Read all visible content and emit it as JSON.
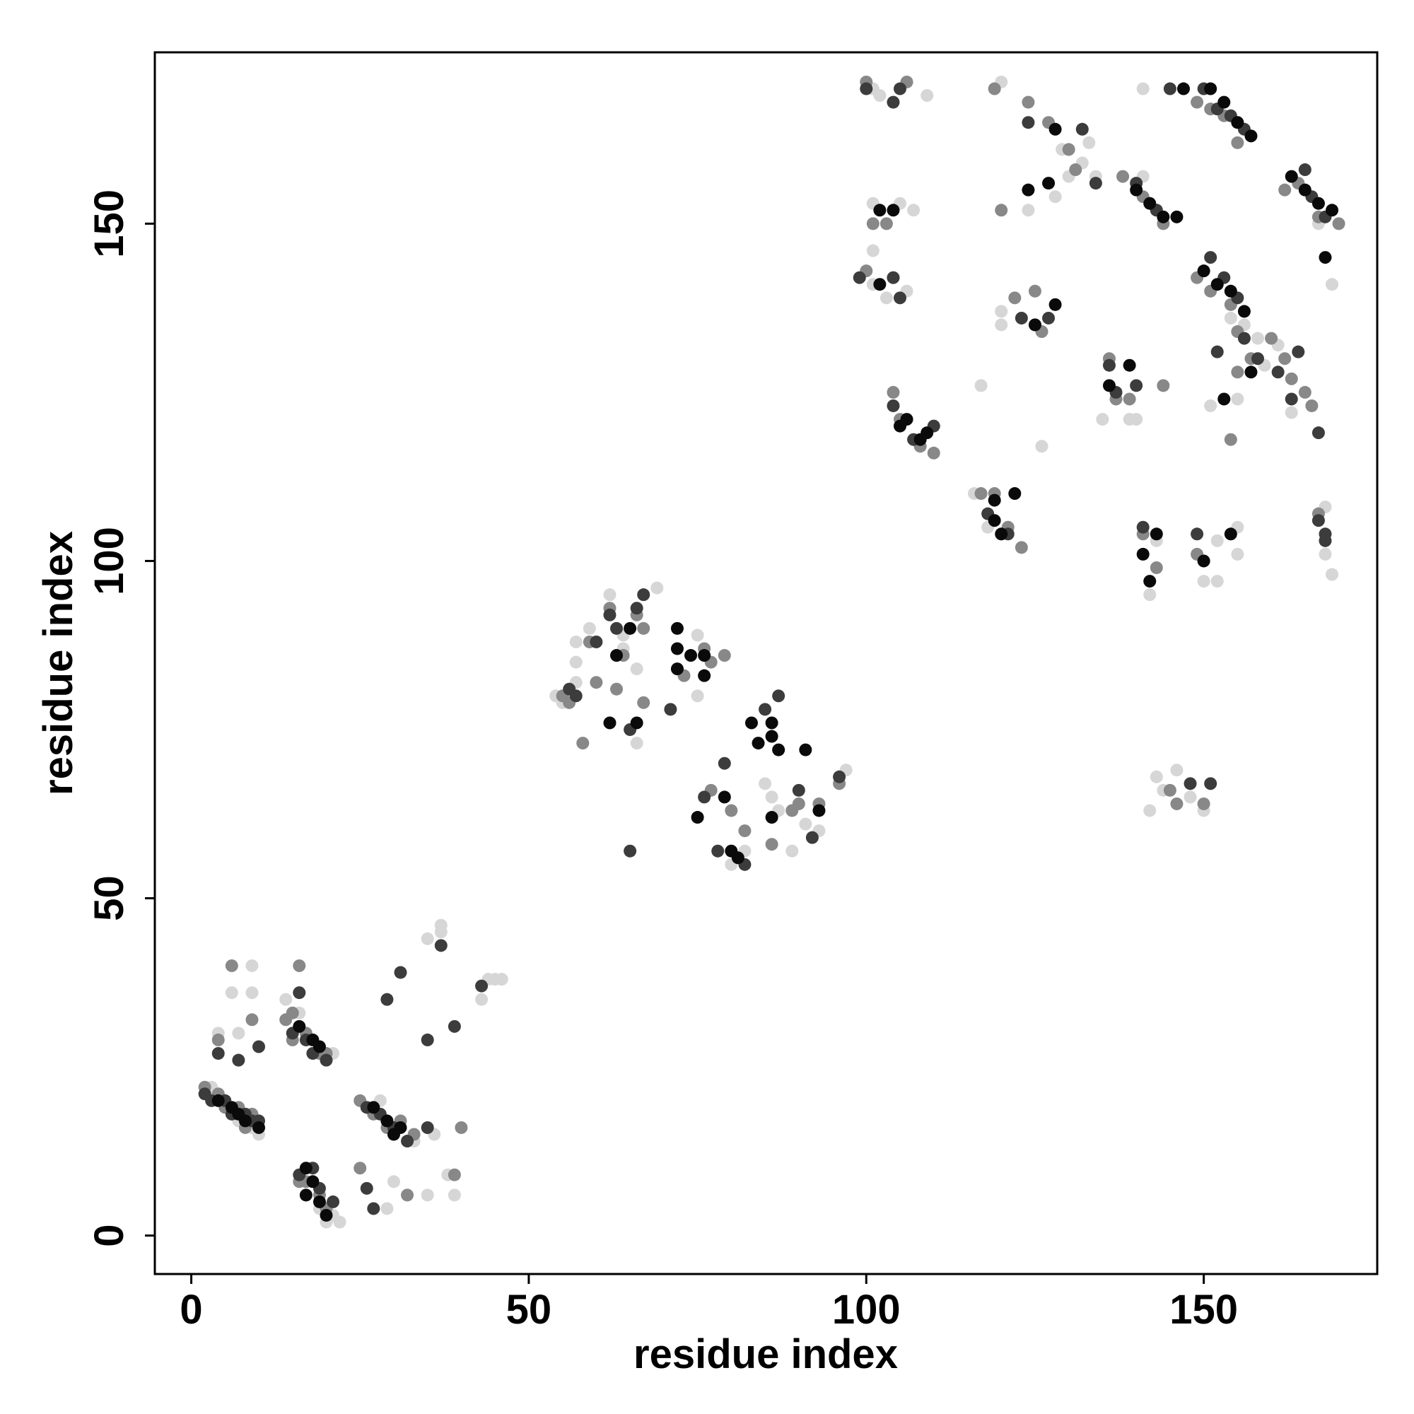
{
  "chart_data": {
    "type": "scatter",
    "x_label": "residue index",
    "y_label": "residue index",
    "xlim": [
      -5.4,
      175.7
    ],
    "ylim": [
      -5.7,
      175.4
    ],
    "xticks": [
      0,
      50,
      100,
      150
    ],
    "yticks": [
      0,
      50,
      100,
      150
    ],
    "grid": false,
    "series": [
      {
        "color": "#d6d6d6",
        "x": [
          3,
          4,
          7,
          8,
          9,
          10,
          14,
          16,
          19,
          21,
          19,
          20,
          22,
          21,
          28,
          30,
          33,
          4,
          6,
          7,
          9,
          9,
          29,
          30,
          35,
          36,
          35,
          37,
          37,
          39,
          38,
          43,
          44,
          45,
          46,
          54,
          55,
          57,
          57,
          57,
          59,
          62,
          64,
          66,
          69,
          64,
          66,
          75,
          75,
          80,
          82,
          86,
          85,
          87,
          89,
          91,
          93,
          97,
          101,
          101,
          101,
          101,
          102,
          105,
          107,
          109,
          103,
          106,
          116,
          118,
          117,
          120,
          120,
          120,
          124,
          126,
          128,
          130,
          129,
          132,
          133,
          134,
          135,
          139,
          140,
          141,
          141,
          142,
          143,
          143,
          144,
          146,
          142,
          148,
          150,
          150,
          152,
          152,
          155,
          155,
          151,
          154,
          156,
          158,
          161,
          159,
          163,
          168,
          168,
          169,
          169,
          167,
          155
        ],
        "values": [
          22,
          21,
          17,
          18,
          16,
          15,
          35,
          33,
          28,
          27,
          4,
          2,
          2,
          3,
          20,
          15,
          14,
          30,
          36,
          30,
          36,
          40,
          4,
          8,
          44,
          15,
          6,
          46,
          45,
          6,
          9,
          35,
          38,
          38,
          38,
          80,
          79,
          82,
          85,
          88,
          90,
          95,
          87,
          84,
          96,
          89,
          73,
          80,
          89,
          55,
          57,
          65,
          67,
          63,
          57,
          61,
          60,
          69,
          141,
          146,
          153,
          170,
          169,
          153,
          152,
          169,
          139,
          140,
          110,
          105,
          126,
          135,
          137,
          171,
          152,
          117,
          154,
          157,
          161,
          159,
          162,
          157,
          121,
          121,
          121,
          170,
          157,
          95,
          103,
          68,
          66,
          69,
          63,
          65,
          63,
          97,
          97,
          103,
          105,
          101,
          123,
          136,
          135,
          133,
          132,
          129,
          122,
          108,
          101,
          98,
          141,
          150,
          124
        ]
      },
      {
        "color": "#888888",
        "x": [
          2,
          4,
          5,
          7,
          8,
          9,
          14,
          15,
          17,
          19,
          20,
          16,
          17,
          19,
          20,
          25,
          27,
          29,
          31,
          33,
          4,
          6,
          9,
          15,
          16,
          25,
          32,
          39,
          40,
          55,
          56,
          58,
          59,
          62,
          64,
          66,
          67,
          60,
          63,
          67,
          73,
          76,
          77,
          79,
          77,
          82,
          80,
          86,
          89,
          90,
          93,
          96,
          100,
          101,
          103,
          104,
          100,
          106,
          104,
          105,
          108,
          110,
          117,
          119,
          121,
          123,
          119,
          120,
          124,
          127,
          130,
          131,
          122,
          125,
          125,
          126,
          136,
          139,
          137,
          144,
          138,
          141,
          143,
          144,
          149,
          151,
          153,
          155,
          149,
          151,
          154,
          155,
          157,
          160,
          162,
          163,
          165,
          167,
          166,
          141,
          143,
          149,
          150,
          145,
          150,
          146,
          162,
          164,
          167,
          170,
          155,
          154
        ],
        "values": [
          22,
          21,
          19,
          19,
          16,
          18,
          32,
          29,
          30,
          27,
          27,
          8,
          8,
          6,
          4,
          20,
          18,
          16,
          17,
          15,
          29,
          40,
          32,
          33,
          40,
          10,
          6,
          9,
          16,
          80,
          79,
          73,
          88,
          93,
          86,
          92,
          90,
          82,
          81,
          79,
          83,
          87,
          85,
          86,
          66,
          60,
          63,
          58,
          63,
          64,
          64,
          67,
          143,
          150,
          150,
          142,
          171,
          171,
          125,
          121,
          117,
          116,
          110,
          110,
          105,
          102,
          170,
          152,
          168,
          165,
          161,
          158,
          139,
          135,
          140,
          134,
          130,
          124,
          124,
          126,
          157,
          154,
          152,
          150,
          168,
          167,
          166,
          162,
          142,
          140,
          138,
          134,
          130,
          133,
          130,
          127,
          125,
          107,
          123,
          104,
          99,
          101,
          100,
          66,
          64,
          64,
          155,
          156,
          151,
          150,
          128,
          118
        ]
      },
      {
        "color": "#3c3c3c",
        "x": [
          2,
          3,
          5,
          6,
          8,
          9,
          10,
          15,
          17,
          18,
          20,
          16,
          18,
          19,
          21,
          26,
          28,
          30,
          32,
          4,
          7,
          10,
          16,
          26,
          27,
          29,
          31,
          35,
          35,
          37,
          39,
          43,
          56,
          57,
          60,
          62,
          63,
          65,
          66,
          67,
          65,
          71,
          79,
          76,
          78,
          82,
          85,
          87,
          90,
          92,
          96,
          99,
          104,
          105,
          100,
          104,
          105,
          104,
          107,
          110,
          118,
          121,
          123,
          124,
          127,
          132,
          134,
          136,
          140,
          143,
          145,
          151,
          153,
          155,
          156,
          158,
          152,
          161,
          164,
          163,
          167,
          167,
          168,
          141,
          148,
          151,
          137,
          140,
          168,
          165,
          166,
          168,
          150,
          152,
          154,
          156,
          149
        ],
        "values": [
          21,
          20,
          20,
          18,
          18,
          17,
          17,
          30,
          29,
          27,
          26,
          9,
          10,
          7,
          5,
          19,
          18,
          16,
          14,
          27,
          26,
          28,
          36,
          7,
          4,
          35,
          39,
          29,
          16,
          43,
          31,
          37,
          81,
          80,
          88,
          92,
          90,
          75,
          93,
          95,
          57,
          78,
          70,
          65,
          57,
          55,
          78,
          80,
          66,
          59,
          68,
          142,
          142,
          139,
          170,
          168,
          170,
          123,
          118,
          120,
          107,
          104,
          136,
          165,
          136,
          164,
          156,
          129,
          156,
          152,
          170,
          145,
          142,
          139,
          133,
          130,
          131,
          128,
          131,
          124,
          119,
          106,
          104,
          105,
          67,
          67,
          125,
          126,
          103,
          158,
          154,
          151,
          170,
          167,
          166,
          164,
          104
        ]
      },
      {
        "color": "#0a0a0a",
        "x": [
          4,
          6,
          7,
          8,
          10,
          17,
          18,
          17,
          19,
          20,
          16,
          18,
          19,
          27,
          29,
          31,
          30,
          72,
          72,
          72,
          74,
          76,
          76,
          63,
          65,
          62,
          66,
          80,
          81,
          83,
          84,
          86,
          86,
          87,
          91,
          75,
          79,
          86,
          93,
          102,
          102,
          104,
          105,
          106,
          108,
          109,
          120,
          119,
          119,
          122,
          124,
          127,
          128,
          128,
          125,
          136,
          139,
          140,
          142,
          144,
          146,
          151,
          153,
          155,
          157,
          150,
          152,
          154,
          156,
          157,
          153,
          150,
          154,
          141,
          142,
          143,
          163,
          165,
          167,
          169,
          168,
          147
        ],
        "values": [
          20,
          19,
          18,
          17,
          16,
          10,
          8,
          6,
          5,
          3,
          31,
          29,
          28,
          19,
          17,
          16,
          15,
          90,
          87,
          84,
          86,
          83,
          86,
          86,
          90,
          76,
          76,
          57,
          56,
          76,
          73,
          76,
          74,
          72,
          72,
          62,
          65,
          62,
          63,
          141,
          152,
          152,
          120,
          121,
          118,
          119,
          104,
          106,
          109,
          110,
          155,
          156,
          164,
          138,
          135,
          126,
          129,
          155,
          153,
          151,
          151,
          170,
          168,
          165,
          163,
          143,
          141,
          140,
          137,
          128,
          124,
          100,
          104,
          101,
          97,
          104,
          157,
          155,
          153,
          152,
          145,
          170
        ]
      }
    ]
  }
}
